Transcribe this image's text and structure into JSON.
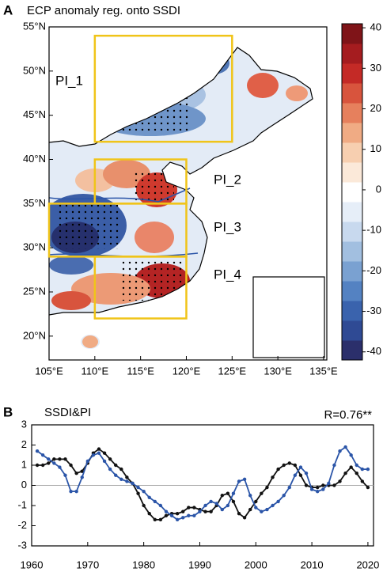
{
  "chart_data": [
    {
      "type": "map",
      "panel_label": "A",
      "title": "ECP anomaly reg. onto SSDI",
      "xlim": [
        105,
        135.35
      ],
      "ylim": [
        17.3,
        55
      ],
      "xticks": [
        {
          "value": 105,
          "label": "105°E"
        },
        {
          "value": 110,
          "label": "110°E"
        },
        {
          "value": 115,
          "label": "115°E"
        },
        {
          "value": 120,
          "label": "120°E"
        },
        {
          "value": 125,
          "label": "125°E"
        },
        {
          "value": 130,
          "label": "130°E"
        },
        {
          "value": 135,
          "label": "135°E"
        }
      ],
      "yticks": [
        {
          "value": 20,
          "label": "20°N"
        },
        {
          "value": 25,
          "label": "25°N"
        },
        {
          "value": 30,
          "label": "30°N"
        },
        {
          "value": 35,
          "label": "35°N"
        },
        {
          "value": 40,
          "label": "40°N"
        },
        {
          "value": 45,
          "label": "45°N"
        },
        {
          "value": 50,
          "label": "50°N"
        },
        {
          "value": 55,
          "label": "55°N"
        }
      ],
      "regions": [
        {
          "name": "PI_1",
          "lon": [
            110,
            125
          ],
          "lat": [
            42,
            54
          ]
        },
        {
          "name": "PI_2",
          "lon": [
            110,
            120
          ],
          "lat": [
            35,
            40
          ]
        },
        {
          "name": "PI_3",
          "lon": [
            105,
            120
          ],
          "lat": [
            29,
            35
          ]
        },
        {
          "name": "PI_4",
          "lon": [
            110,
            120
          ],
          "lat": [
            22,
            29
          ]
        }
      ],
      "region_color": "#f0c419",
      "label_color": "#e8231f",
      "colorbar": {
        "lim": [
          -42,
          41
        ],
        "ticks": [
          -40,
          -30,
          -20,
          -10,
          0,
          10,
          20,
          30,
          40
        ],
        "colors": [
          "#2b2f6b",
          "#2f4a94",
          "#3a63ad",
          "#5482c2",
          "#7aa1d1",
          "#a2bfe0",
          "#c8d9ee",
          "#e6eef8",
          "#ffffff",
          "#fbe9d9",
          "#f7cfb0",
          "#f0ab84",
          "#e6805d",
          "#d8543d",
          "#c42a26",
          "#a51c1f",
          "#7f1418"
        ]
      }
    },
    {
      "type": "line",
      "panel_label": "B",
      "title": "SSDI&PI",
      "annotation": "R=0.76**",
      "xlim": [
        1960,
        2021
      ],
      "ylim": [
        -3,
        3
      ],
      "xticks": [
        1960,
        1970,
        1980,
        1990,
        2000,
        2010,
        2020
      ],
      "yticks": [
        -3,
        -2,
        -1,
        0,
        1,
        2,
        3
      ],
      "x": [
        1961,
        1962,
        1963,
        1964,
        1965,
        1966,
        1967,
        1968,
        1969,
        1970,
        1971,
        1972,
        1973,
        1974,
        1975,
        1976,
        1977,
        1978,
        1979,
        1980,
        1981,
        1982,
        1983,
        1984,
        1985,
        1986,
        1987,
        1988,
        1989,
        1990,
        1991,
        1992,
        1993,
        1994,
        1995,
        1996,
        1997,
        1998,
        1999,
        2000,
        2001,
        2002,
        2003,
        2004,
        2005,
        2006,
        2007,
        2008,
        2009,
        2010,
        2011,
        2012,
        2013,
        2014,
        2015,
        2016,
        2017,
        2018,
        2019,
        2020
      ],
      "series": [
        {
          "color": "#111111",
          "values": [
            1.0,
            1.0,
            1.1,
            1.3,
            1.3,
            1.3,
            1.0,
            0.6,
            0.7,
            1.1,
            1.6,
            1.8,
            1.6,
            1.3,
            1.0,
            0.8,
            0.4,
            0.1,
            -0.4,
            -1.0,
            -1.4,
            -1.7,
            -1.7,
            -1.5,
            -1.4,
            -1.4,
            -1.3,
            -1.1,
            -1.1,
            -1.2,
            -1.3,
            -1.3,
            -1.0,
            -0.5,
            -0.4,
            -0.8,
            -1.4,
            -1.6,
            -1.2,
            -0.8,
            -0.4,
            -0.1,
            0.4,
            0.8,
            1.0,
            1.1,
            1.0,
            0.5,
            0.0,
            -0.1,
            -0.1,
            0.0,
            0.0,
            0.0,
            0.2,
            0.6,
            0.9,
            0.6,
            0.2,
            -0.1
          ]
        },
        {
          "color": "#2b55a8",
          "values": [
            1.7,
            1.5,
            1.3,
            1.1,
            0.9,
            0.5,
            -0.3,
            -0.3,
            0.4,
            1.2,
            1.5,
            1.6,
            1.2,
            0.8,
            0.5,
            0.3,
            0.2,
            0.1,
            -0.1,
            -0.3,
            -0.6,
            -0.8,
            -1.0,
            -1.3,
            -1.5,
            -1.7,
            -1.6,
            -1.5,
            -1.5,
            -1.3,
            -1.0,
            -0.8,
            -0.9,
            -1.2,
            -1.0,
            -0.4,
            0.2,
            0.3,
            -0.5,
            -1.1,
            -1.3,
            -1.2,
            -1.0,
            -0.8,
            -0.5,
            -0.1,
            0.5,
            0.9,
            0.6,
            -0.2,
            -0.3,
            -0.2,
            0.1,
            1.0,
            1.7,
            1.9,
            1.5,
            1.0,
            0.8,
            0.8
          ]
        }
      ]
    }
  ]
}
